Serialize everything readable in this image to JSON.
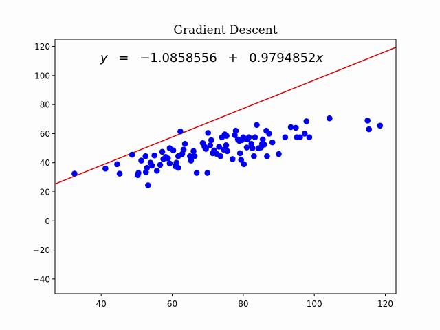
{
  "chart_data": {
    "type": "scatter",
    "title": "Gradient Descent",
    "xlabel": "",
    "ylabel": "",
    "xlim": [
      27,
      123
    ],
    "ylim": [
      -50,
      125
    ],
    "x_ticks": [
      40,
      60,
      80,
      100,
      120
    ],
    "y_ticks": [
      -40,
      -20,
      0,
      20,
      40,
      60,
      80,
      100,
      120
    ],
    "x_tick_labels": [
      "40",
      "60",
      "80",
      "100",
      "120"
    ],
    "y_tick_labels": [
      "−40",
      "−20",
      "0",
      "20",
      "40",
      "60",
      "80",
      "100",
      "120"
    ],
    "grid": false,
    "annotation": {
      "y_var": "y",
      "equals": "=",
      "intercept": "−1.0858556",
      "plus": "+",
      "slope": "0.9794852",
      "x_var": "x"
    },
    "fit_line": {
      "intercept": -1.0858556,
      "slope": 0.9794852,
      "color": "#dd0000"
    },
    "points_color": "#0000ee",
    "points": [
      [
        32.5,
        32.5
      ],
      [
        41.2,
        36.0
      ],
      [
        44.5,
        39.0
      ],
      [
        45.2,
        32.5
      ],
      [
        48.7,
        45.5
      ],
      [
        50.3,
        31.5
      ],
      [
        50.5,
        33.0
      ],
      [
        51.3,
        41.5
      ],
      [
        52.5,
        44.5
      ],
      [
        52.6,
        33.5
      ],
      [
        52.9,
        36.5
      ],
      [
        53.2,
        24.5
      ],
      [
        53.9,
        40.0
      ],
      [
        54.3,
        38.0
      ],
      [
        55.0,
        45.0
      ],
      [
        55.7,
        34.5
      ],
      [
        56.6,
        38.5
      ],
      [
        57.2,
        47.5
      ],
      [
        57.5,
        42.5
      ],
      [
        58.2,
        44.0
      ],
      [
        58.8,
        43.0
      ],
      [
        59.3,
        39.5
      ],
      [
        59.3,
        50.0
      ],
      [
        60.3,
        48.5
      ],
      [
        60.9,
        37.5
      ],
      [
        61.2,
        40.0
      ],
      [
        61.7,
        44.5
      ],
      [
        61.7,
        36.5
      ],
      [
        62.3,
        61.5
      ],
      [
        62.8,
        46.0
      ],
      [
        63.2,
        49.0
      ],
      [
        63.6,
        53.0
      ],
      [
        65.0,
        44.5
      ],
      [
        65.3,
        41.5
      ],
      [
        66.0,
        48.0
      ],
      [
        66.3,
        44.5
      ],
      [
        66.9,
        33.0
      ],
      [
        68.6,
        53.5
      ],
      [
        69.1,
        51.0
      ],
      [
        69.5,
        49.5
      ],
      [
        69.9,
        33.0
      ],
      [
        70.1,
        60.5
      ],
      [
        70.7,
        52.0
      ],
      [
        71.0,
        55.5
      ],
      [
        71.4,
        46.5
      ],
      [
        71.8,
        48.5
      ],
      [
        72.6,
        46.0
      ],
      [
        73.2,
        51.0
      ],
      [
        73.6,
        44.5
      ],
      [
        74.0,
        57.5
      ],
      [
        74.5,
        49.0
      ],
      [
        74.8,
        59.5
      ],
      [
        75.2,
        52.0
      ],
      [
        75.3,
        58.5
      ],
      [
        75.5,
        48.0
      ],
      [
        77.0,
        42.5
      ],
      [
        77.6,
        59.0
      ],
      [
        77.9,
        62.0
      ],
      [
        78.5,
        56.0
      ],
      [
        78.9,
        55.0
      ],
      [
        79.1,
        46.5
      ],
      [
        79.4,
        42.0
      ],
      [
        79.6,
        55.5
      ],
      [
        80.0,
        57.5
      ],
      [
        80.2,
        39.0
      ],
      [
        81.0,
        50.5
      ],
      [
        81.2,
        56.0
      ],
      [
        81.6,
        57.5
      ],
      [
        82.3,
        53.0
      ],
      [
        82.6,
        50.0
      ],
      [
        83.0,
        44.5
      ],
      [
        83.3,
        57.5
      ],
      [
        83.8,
        66.0
      ],
      [
        84.3,
        50.0
      ],
      [
        85.0,
        50.5
      ],
      [
        85.3,
        53.0
      ],
      [
        85.5,
        56.0
      ],
      [
        85.9,
        52.5
      ],
      [
        86.5,
        62.0
      ],
      [
        86.7,
        44.5
      ],
      [
        87.3,
        60.0
      ],
      [
        88.2,
        54.0
      ],
      [
        90.0,
        46.0
      ],
      [
        91.8,
        57.5
      ],
      [
        93.4,
        64.5
      ],
      [
        94.8,
        64.0
      ],
      [
        95.1,
        57.5
      ],
      [
        96.0,
        57.5
      ],
      [
        97.3,
        60.0
      ],
      [
        97.8,
        68.5
      ],
      [
        98.6,
        57.5
      ],
      [
        104.3,
        70.5
      ],
      [
        115.0,
        69.0
      ],
      [
        115.4,
        63.0
      ],
      [
        118.5,
        65.5
      ]
    ]
  }
}
